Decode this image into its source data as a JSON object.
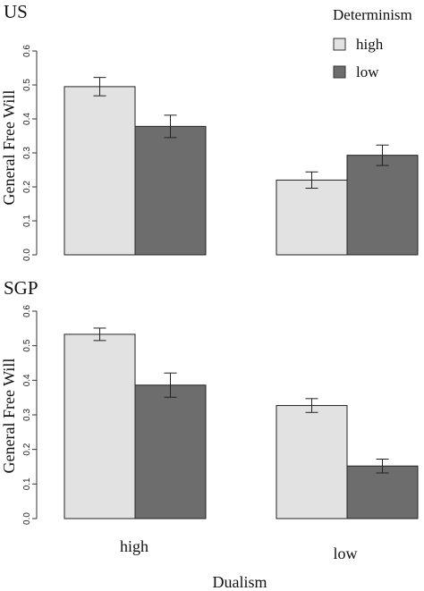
{
  "legend": {
    "title": "Determinism",
    "items": [
      {
        "label": "high",
        "color": "#e2e2e2"
      },
      {
        "label": "low",
        "color": "#6d6d6d"
      }
    ]
  },
  "chart_data": [
    {
      "type": "bar",
      "title": "US",
      "ylabel": "General Free Will",
      "xlabel": "",
      "ylim": [
        0,
        0.6
      ],
      "yticks": [
        "0.0",
        "0.1",
        "0.2",
        "0.3",
        "0.4",
        "0.5",
        "0.6"
      ],
      "categories": [
        "high",
        "low"
      ],
      "show_category_labels": false,
      "series": [
        {
          "name": "high",
          "values": [
            0.495,
            0.22
          ],
          "error": [
            0.027,
            0.024
          ],
          "color": "#e2e2e2"
        },
        {
          "name": "low",
          "values": [
            0.378,
            0.293
          ],
          "error": [
            0.033,
            0.03
          ],
          "color": "#6d6d6d"
        }
      ]
    },
    {
      "type": "bar",
      "title": "SGP",
      "ylabel": "General Free Will",
      "xlabel": "Dualism",
      "ylim": [
        0,
        0.6
      ],
      "yticks": [
        "0.0",
        "0.1",
        "0.2",
        "0.3",
        "0.4",
        "0.5",
        "0.6"
      ],
      "categories": [
        "high",
        "low"
      ],
      "show_category_labels": true,
      "series": [
        {
          "name": "high",
          "values": [
            0.533,
            0.327
          ],
          "error": [
            0.018,
            0.02
          ],
          "color": "#e2e2e2"
        },
        {
          "name": "low",
          "values": [
            0.386,
            0.152
          ],
          "error": [
            0.035,
            0.02
          ],
          "color": "#6d6d6d"
        }
      ]
    }
  ]
}
